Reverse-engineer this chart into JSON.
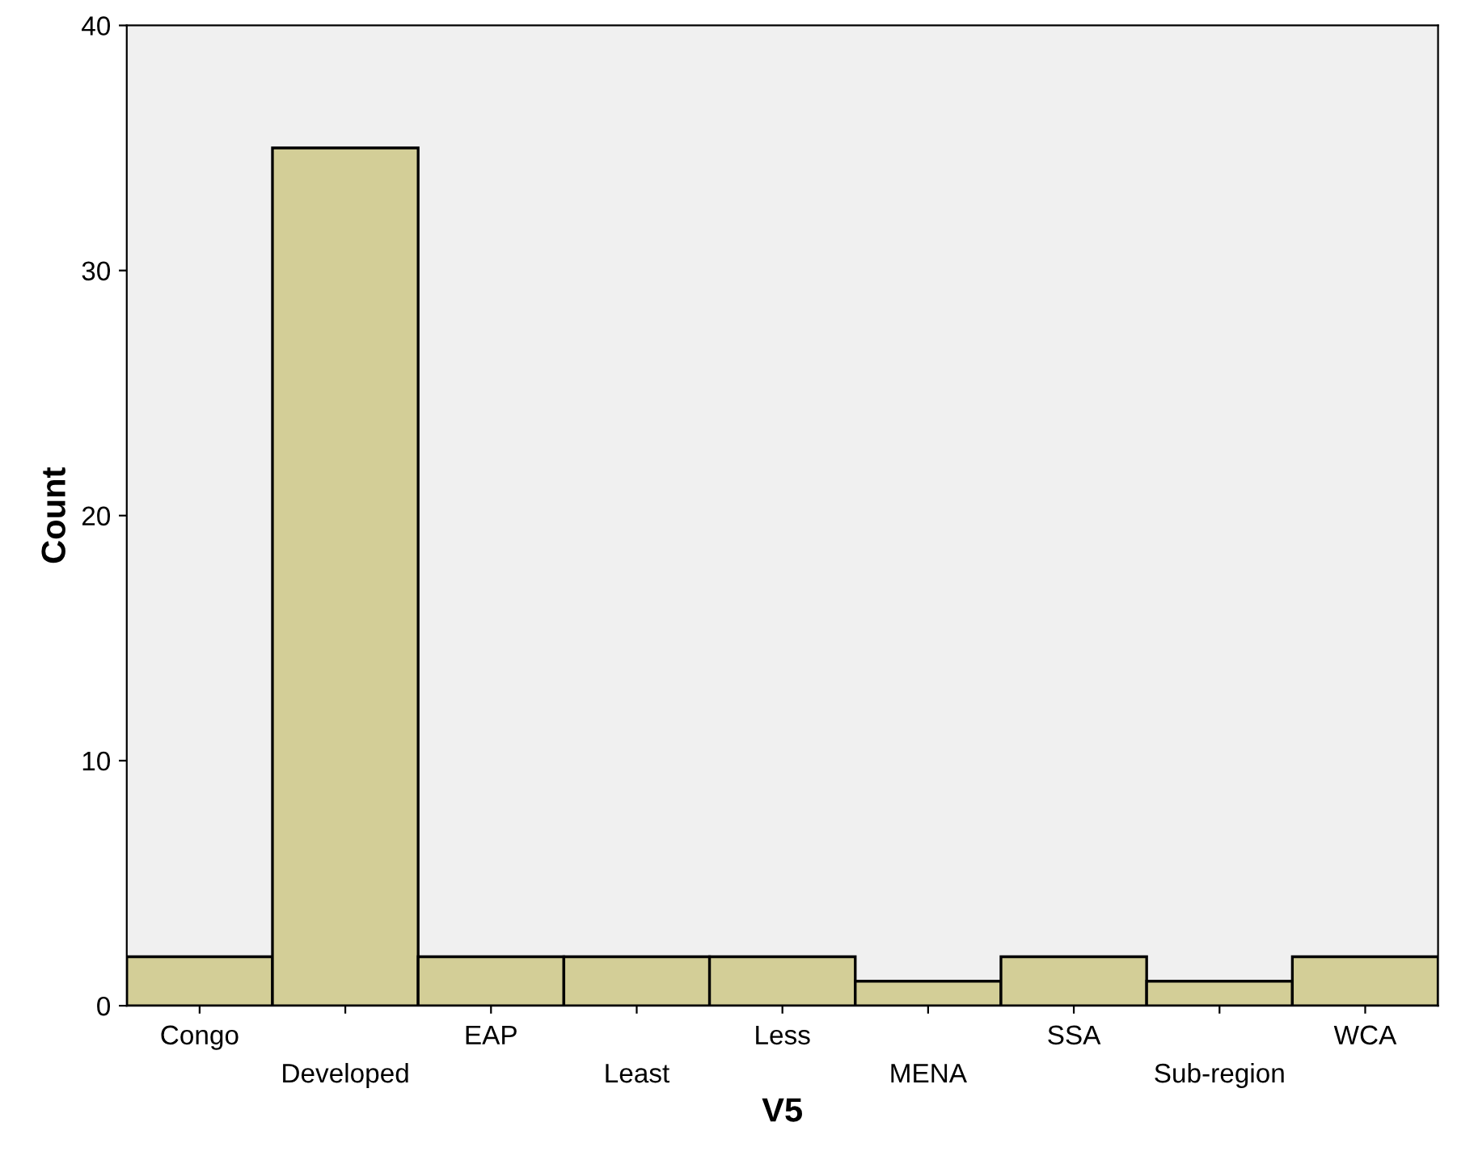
{
  "chart_data": {
    "type": "bar",
    "xlabel": "V5",
    "ylabel": "Count",
    "categories": [
      "Congo",
      "Developed",
      "EAP",
      "Least",
      "Less",
      "MENA",
      "SSA",
      "Sub-region",
      "WCA"
    ],
    "values": [
      2,
      35,
      2,
      2,
      2,
      1,
      2,
      1,
      2
    ],
    "color": "#d3ce97",
    "ylim": [
      0,
      40
    ],
    "yticks": [
      0,
      10,
      20,
      30,
      40
    ],
    "grid": false
  }
}
